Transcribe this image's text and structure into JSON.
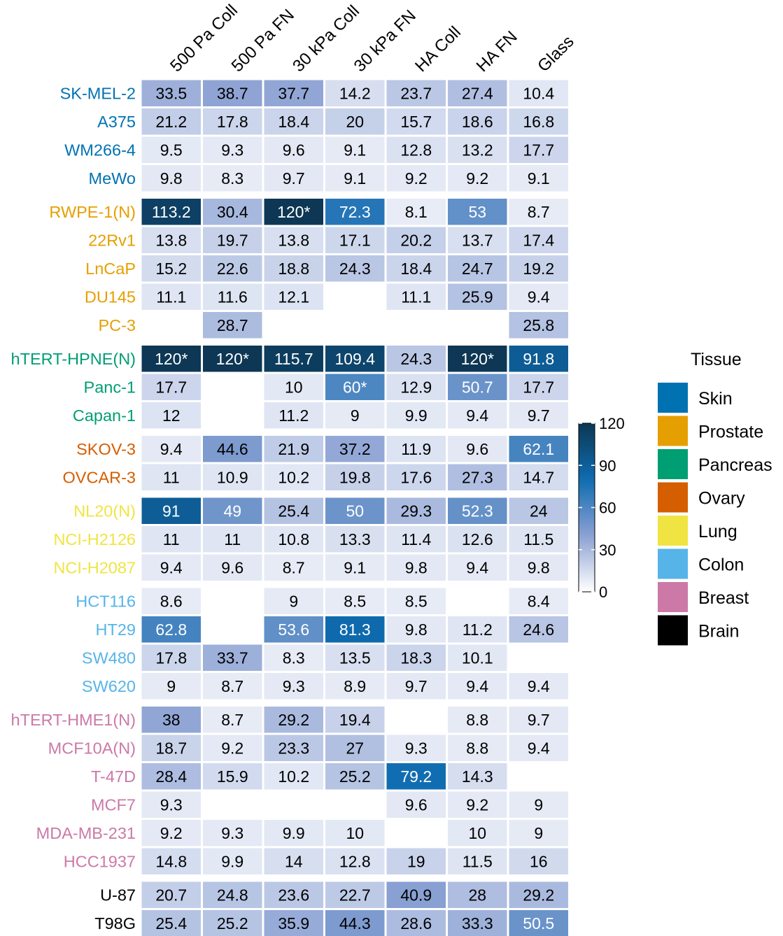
{
  "chart_data": {
    "type": "heatmap",
    "columns": [
      "500 Pa Coll",
      "500 Pa FN",
      "30 kPa Coll",
      "30 kPa FN",
      "HA Coll",
      "HA FN",
      "Glass"
    ],
    "colorbar": {
      "min": 0,
      "max": 120,
      "ticks": [
        "0",
        "30",
        "60",
        "90",
        "120"
      ]
    },
    "colorscale": [
      "#ffffff",
      "#8ba1d3",
      "#0e6cb0",
      "#0d3754"
    ],
    "legend": {
      "title": "Tissue",
      "items": [
        {
          "label": "Skin",
          "color": "#0072B2"
        },
        {
          "label": "Prostate",
          "color": "#E69F00"
        },
        {
          "label": "Pancreas",
          "color": "#009E73"
        },
        {
          "label": "Ovary",
          "color": "#D55E00"
        },
        {
          "label": "Lung",
          "color": "#F0E442"
        },
        {
          "label": "Colon",
          "color": "#56B4E9"
        },
        {
          "label": "Breast",
          "color": "#CC79A7"
        },
        {
          "label": "Brain",
          "color": "#000000"
        }
      ]
    },
    "groups": [
      {
        "tissue": "Skin",
        "rows": [
          {
            "name": "SK-MEL-2",
            "values": [
              33.5,
              38.7,
              37.7,
              14.2,
              23.7,
              27.4,
              10.4
            ],
            "labels": [
              "33.5",
              "38.7",
              "37.7",
              "14.2",
              "23.7",
              "27.4",
              "10.4"
            ]
          },
          {
            "name": "A375",
            "values": [
              21.2,
              17.8,
              18.4,
              20,
              15.7,
              18.6,
              16.8
            ],
            "labels": [
              "21.2",
              "17.8",
              "18.4",
              "20",
              "15.7",
              "18.6",
              "16.8"
            ]
          },
          {
            "name": "WM266-4",
            "values": [
              9.5,
              9.3,
              9.6,
              9.1,
              12.8,
              13.2,
              17.7
            ],
            "labels": [
              "9.5",
              "9.3",
              "9.6",
              "9.1",
              "12.8",
              "13.2",
              "17.7"
            ]
          },
          {
            "name": "MeWo",
            "values": [
              9.8,
              8.3,
              9.7,
              9.1,
              9.2,
              9.2,
              9.1
            ],
            "labels": [
              "9.8",
              "8.3",
              "9.7",
              "9.1",
              "9.2",
              "9.2",
              "9.1"
            ]
          }
        ]
      },
      {
        "tissue": "Prostate",
        "rows": [
          {
            "name": "RWPE-1(N)",
            "values": [
              113.2,
              30.4,
              120,
              72.3,
              8.1,
              53,
              8.7
            ],
            "labels": [
              "113.2",
              "30.4",
              "120*",
              "72.3",
              "8.1",
              "53",
              "8.7"
            ]
          },
          {
            "name": "22Rv1",
            "values": [
              13.8,
              19.7,
              13.8,
              17.1,
              20.2,
              13.7,
              17.4
            ],
            "labels": [
              "13.8",
              "19.7",
              "13.8",
              "17.1",
              "20.2",
              "13.7",
              "17.4"
            ]
          },
          {
            "name": "LnCaP",
            "values": [
              15.2,
              22.6,
              18.8,
              24.3,
              18.4,
              24.7,
              19.2
            ],
            "labels": [
              "15.2",
              "22.6",
              "18.8",
              "24.3",
              "18.4",
              "24.7",
              "19.2"
            ]
          },
          {
            "name": "DU145",
            "values": [
              11.1,
              11.6,
              12.1,
              null,
              11.1,
              25.9,
              9.4
            ],
            "labels": [
              "11.1",
              "11.6",
              "12.1",
              "",
              "11.1",
              "25.9",
              "9.4"
            ]
          },
          {
            "name": "PC-3",
            "values": [
              null,
              28.7,
              null,
              null,
              null,
              null,
              25.8
            ],
            "labels": [
              "",
              "28.7",
              "",
              "",
              "",
              "",
              "25.8"
            ]
          }
        ]
      },
      {
        "tissue": "Pancreas",
        "rows": [
          {
            "name": "hTERT-HPNE(N)",
            "values": [
              120,
              120,
              115.7,
              109.4,
              24.3,
              120,
              91.8
            ],
            "labels": [
              "120*",
              "120*",
              "115.7",
              "109.4",
              "24.3",
              "120*",
              "91.8"
            ]
          },
          {
            "name": "Panc-1",
            "values": [
              17.7,
              null,
              10,
              60,
              12.9,
              50.7,
              17.7
            ],
            "labels": [
              "17.7",
              "",
              "10",
              "60*",
              "12.9",
              "50.7",
              "17.7"
            ]
          },
          {
            "name": "Capan-1",
            "values": [
              12,
              null,
              11.2,
              9,
              9.9,
              9.4,
              9.7
            ],
            "labels": [
              "12",
              "",
              "11.2",
              "9",
              "9.9",
              "9.4",
              "9.7"
            ]
          }
        ]
      },
      {
        "tissue": "Ovary",
        "rows": [
          {
            "name": "SKOV-3",
            "values": [
              9.4,
              44.6,
              21.9,
              37.2,
              11.9,
              9.6,
              62.1
            ],
            "labels": [
              "9.4",
              "44.6",
              "21.9",
              "37.2",
              "11.9",
              "9.6",
              "62.1"
            ]
          },
          {
            "name": "OVCAR-3",
            "values": [
              11,
              10.9,
              10.2,
              19.8,
              17.6,
              27.3,
              14.7
            ],
            "labels": [
              "11",
              "10.9",
              "10.2",
              "19.8",
              "17.6",
              "27.3",
              "14.7"
            ]
          }
        ]
      },
      {
        "tissue": "Lung",
        "rows": [
          {
            "name": "NL20(N)",
            "values": [
              91,
              49,
              25.4,
              50,
              29.3,
              52.3,
              24
            ],
            "labels": [
              "91",
              "49",
              "25.4",
              "50",
              "29.3",
              "52.3",
              "24"
            ]
          },
          {
            "name": "NCI-H2126",
            "values": [
              11,
              11,
              10.8,
              13.3,
              11.4,
              12.6,
              11.5
            ],
            "labels": [
              "11",
              "11",
              "10.8",
              "13.3",
              "11.4",
              "12.6",
              "11.5"
            ]
          },
          {
            "name": "NCI-H2087",
            "values": [
              9.4,
              9.6,
              8.7,
              9.1,
              9.8,
              9.4,
              9.8
            ],
            "labels": [
              "9.4",
              "9.6",
              "8.7",
              "9.1",
              "9.8",
              "9.4",
              "9.8"
            ]
          }
        ]
      },
      {
        "tissue": "Colon",
        "rows": [
          {
            "name": "HCT116",
            "values": [
              8.6,
              null,
              9,
              8.5,
              8.5,
              null,
              8.4
            ],
            "labels": [
              "8.6",
              "",
              "9",
              "8.5",
              "8.5",
              "",
              "8.4"
            ]
          },
          {
            "name": "HT29",
            "values": [
              62.8,
              null,
              53.6,
              81.3,
              9.8,
              11.2,
              24.6
            ],
            "labels": [
              "62.8",
              "",
              "53.6",
              "81.3",
              "9.8",
              "11.2",
              "24.6"
            ]
          },
          {
            "name": "SW480",
            "values": [
              17.8,
              33.7,
              8.3,
              13.5,
              18.3,
              10.1,
              null
            ],
            "labels": [
              "17.8",
              "33.7",
              "8.3",
              "13.5",
              "18.3",
              "10.1",
              ""
            ]
          },
          {
            "name": "SW620",
            "values": [
              9,
              8.7,
              9.3,
              8.9,
              9.7,
              9.4,
              9.4
            ],
            "labels": [
              "9",
              "8.7",
              "9.3",
              "8.9",
              "9.7",
              "9.4",
              "9.4"
            ]
          }
        ]
      },
      {
        "tissue": "Breast",
        "rows": [
          {
            "name": "hTERT-HME1(N)",
            "values": [
              38,
              8.7,
              29.2,
              19.4,
              null,
              8.8,
              9.7
            ],
            "labels": [
              "38",
              "8.7",
              "29.2",
              "19.4",
              "",
              "8.8",
              "9.7"
            ]
          },
          {
            "name": "MCF10A(N)",
            "values": [
              18.7,
              9.2,
              23.3,
              27,
              9.3,
              8.8,
              9.4
            ],
            "labels": [
              "18.7",
              "9.2",
              "23.3",
              "27",
              "9.3",
              "8.8",
              "9.4"
            ]
          },
          {
            "name": "T-47D",
            "values": [
              28.4,
              15.9,
              10.2,
              25.2,
              79.2,
              14.3,
              null
            ],
            "labels": [
              "28.4",
              "15.9",
              "10.2",
              "25.2",
              "79.2",
              "14.3",
              ""
            ]
          },
          {
            "name": "MCF7",
            "values": [
              9.3,
              null,
              null,
              null,
              9.6,
              9.2,
              9
            ],
            "labels": [
              "9.3",
              "",
              "",
              "",
              "9.6",
              "9.2",
              "9"
            ]
          },
          {
            "name": "MDA-MB-231",
            "values": [
              9.2,
              9.3,
              9.9,
              10,
              null,
              10,
              9
            ],
            "labels": [
              "9.2",
              "9.3",
              "9.9",
              "10",
              "",
              "10",
              "9"
            ]
          },
          {
            "name": "HCC1937",
            "values": [
              14.8,
              9.9,
              14,
              12.8,
              19,
              11.5,
              16
            ],
            "labels": [
              "14.8",
              "9.9",
              "14",
              "12.8",
              "19",
              "11.5",
              "16"
            ]
          }
        ]
      },
      {
        "tissue": "Brain",
        "rows": [
          {
            "name": "U-87",
            "values": [
              20.7,
              24.8,
              23.6,
              22.7,
              40.9,
              28,
              29.2
            ],
            "labels": [
              "20.7",
              "24.8",
              "23.6",
              "22.7",
              "40.9",
              "28",
              "29.2"
            ]
          },
          {
            "name": "T98G",
            "values": [
              25.4,
              25.2,
              35.9,
              44.3,
              28.6,
              33.3,
              50.5
            ],
            "labels": [
              "25.4",
              "25.2",
              "35.9",
              "44.3",
              "28.6",
              "33.3",
              "50.5"
            ]
          }
        ]
      }
    ]
  }
}
